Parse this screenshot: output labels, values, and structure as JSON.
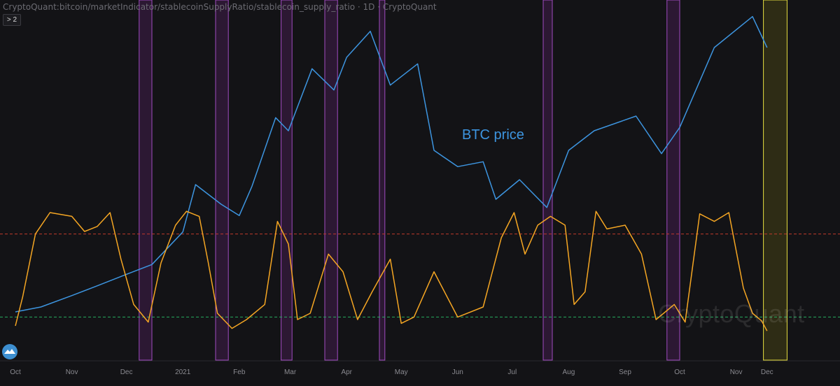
{
  "header": {
    "title": "CryptoQuant:bitcoin/marketIndicator/stablecoinSupplyRatio/stablecoin_supply_ratio · 1D · CryptoQuant",
    "collapse_label": "2"
  },
  "watermark": "CryptoQuant",
  "annotation": "BTC price",
  "colors": {
    "background": "#131316",
    "btc": "#3d95e0",
    "ssr": "#f5a623",
    "upper_line": "#c0392b",
    "lower_line": "#27ae60",
    "buy_zone": "#a04bc0",
    "current_zone": "#e8e040"
  },
  "x_ticks": [
    "Oct",
    "Nov",
    "Dec",
    "2021",
    "Feb",
    "Mar",
    "Apr",
    "May",
    "Jun",
    "Jul",
    "Aug",
    "Sep",
    "Oct",
    "Nov",
    "Dec"
  ],
  "chart_data": {
    "type": "line",
    "x_unit": "date",
    "x": [
      "2020-10-01",
      "2020-11-01",
      "2020-12-01",
      "2021-01-01",
      "2021-02-01",
      "2021-03-01",
      "2021-04-01",
      "2021-05-01",
      "2021-06-01",
      "2021-07-01",
      "2021-08-01",
      "2021-09-01",
      "2021-10-01",
      "2021-11-01",
      "2021-11-18"
    ],
    "series": [
      {
        "name": "BTC price",
        "color": "#3d95e0",
        "points": [
          [
            "2020-10-01",
            0.06
          ],
          [
            "2020-10-15",
            0.09
          ],
          [
            "2020-11-01",
            0.16
          ],
          [
            "2020-11-15",
            0.22
          ],
          [
            "2020-12-01",
            0.29
          ],
          [
            "2020-12-15",
            0.35
          ],
          [
            "2021-01-01",
            0.55
          ],
          [
            "2021-01-08",
            0.84
          ],
          [
            "2021-01-22",
            0.72
          ],
          [
            "2021-02-01",
            0.65
          ],
          [
            "2021-02-08",
            0.83
          ],
          [
            "2021-02-21",
            1.25
          ],
          [
            "2021-02-28",
            1.17
          ],
          [
            "2021-03-13",
            1.55
          ],
          [
            "2021-03-25",
            1.42
          ],
          [
            "2021-04-01",
            1.62
          ],
          [
            "2021-04-14",
            1.78
          ],
          [
            "2021-04-25",
            1.45
          ],
          [
            "2021-05-10",
            1.58
          ],
          [
            "2021-05-19",
            1.05
          ],
          [
            "2021-06-01",
            0.95
          ],
          [
            "2021-06-15",
            0.98
          ],
          [
            "2021-06-22",
            0.75
          ],
          [
            "2021-07-05",
            0.87
          ],
          [
            "2021-07-20",
            0.7
          ],
          [
            "2021-08-01",
            1.05
          ],
          [
            "2021-08-15",
            1.17
          ],
          [
            "2021-09-07",
            1.26
          ],
          [
            "2021-09-21",
            1.03
          ],
          [
            "2021-10-01",
            1.19
          ],
          [
            "2021-10-20",
            1.68
          ],
          [
            "2021-11-10",
            1.87
          ],
          [
            "2021-11-18",
            1.68
          ]
        ]
      },
      {
        "name": "",
        "color": "#f5a623",
        "points": [
          [
            "2020-10-01",
            0.05
          ],
          [
            "2020-10-05",
            0.28
          ],
          [
            "2020-10-12",
            0.78
          ],
          [
            "2020-10-20",
            0.95
          ],
          [
            "2020-11-01",
            0.92
          ],
          [
            "2020-11-08",
            0.8
          ],
          [
            "2020-11-15",
            0.84
          ],
          [
            "2020-11-22",
            0.95
          ],
          [
            "2020-11-28",
            0.58
          ],
          [
            "2020-12-05",
            0.22
          ],
          [
            "2020-12-13",
            0.08
          ],
          [
            "2020-12-20",
            0.55
          ],
          [
            "2020-12-28",
            0.85
          ],
          [
            "2021-01-03",
            0.96
          ],
          [
            "2021-01-10",
            0.92
          ],
          [
            "2021-01-15",
            0.55
          ],
          [
            "2021-01-20",
            0.15
          ],
          [
            "2021-01-28",
            0.03
          ],
          [
            "2021-02-05",
            0.1
          ],
          [
            "2021-02-15",
            0.22
          ],
          [
            "2021-02-22",
            0.88
          ],
          [
            "2021-02-28",
            0.7
          ],
          [
            "2021-03-05",
            0.1
          ],
          [
            "2021-03-12",
            0.15
          ],
          [
            "2021-03-22",
            0.62
          ],
          [
            "2021-03-30",
            0.48
          ],
          [
            "2021-04-07",
            0.1
          ],
          [
            "2021-04-15",
            0.32
          ],
          [
            "2021-04-25",
            0.58
          ],
          [
            "2021-05-01",
            0.07
          ],
          [
            "2021-05-08",
            0.12
          ],
          [
            "2021-05-19",
            0.48
          ],
          [
            "2021-06-01",
            0.12
          ],
          [
            "2021-06-15",
            0.2
          ],
          [
            "2021-06-25",
            0.75
          ],
          [
            "2021-07-02",
            0.95
          ],
          [
            "2021-07-08",
            0.62
          ],
          [
            "2021-07-15",
            0.85
          ],
          [
            "2021-07-22",
            0.92
          ],
          [
            "2021-07-30",
            0.85
          ],
          [
            "2021-08-04",
            0.22
          ],
          [
            "2021-08-10",
            0.32
          ],
          [
            "2021-08-16",
            0.96
          ],
          [
            "2021-08-22",
            0.82
          ],
          [
            "2021-09-01",
            0.85
          ],
          [
            "2021-09-10",
            0.62
          ],
          [
            "2021-09-18",
            0.1
          ],
          [
            "2021-09-28",
            0.22
          ],
          [
            "2021-10-04",
            0.08
          ],
          [
            "2021-10-12",
            0.94
          ],
          [
            "2021-10-20",
            0.88
          ],
          [
            "2021-10-28",
            0.95
          ],
          [
            "2021-11-05",
            0.35
          ],
          [
            "2021-11-10",
            0.15
          ],
          [
            "2021-11-15",
            0.09
          ],
          [
            "2021-11-18",
            0.01
          ]
        ]
      }
    ],
    "reference_lines": [
      {
        "color": "#c0392b",
        "style": "dashed",
        "level": 0.78
      },
      {
        "color": "#27ae60",
        "style": "dashed",
        "level": 0.12
      }
    ],
    "highlight_bands": [
      [
        "2020-12-08",
        "2020-12-15"
      ],
      [
        "2021-01-19",
        "2021-01-26"
      ],
      [
        "2021-02-24",
        "2021-03-02"
      ],
      [
        "2021-03-20",
        "2021-03-27"
      ],
      [
        "2021-04-19",
        "2021-04-22"
      ],
      [
        "2021-07-18",
        "2021-07-23"
      ],
      [
        "2021-09-24",
        "2021-10-01"
      ],
      [
        "2021-11-16",
        "2021-11-29"
      ]
    ],
    "grid": false
  }
}
